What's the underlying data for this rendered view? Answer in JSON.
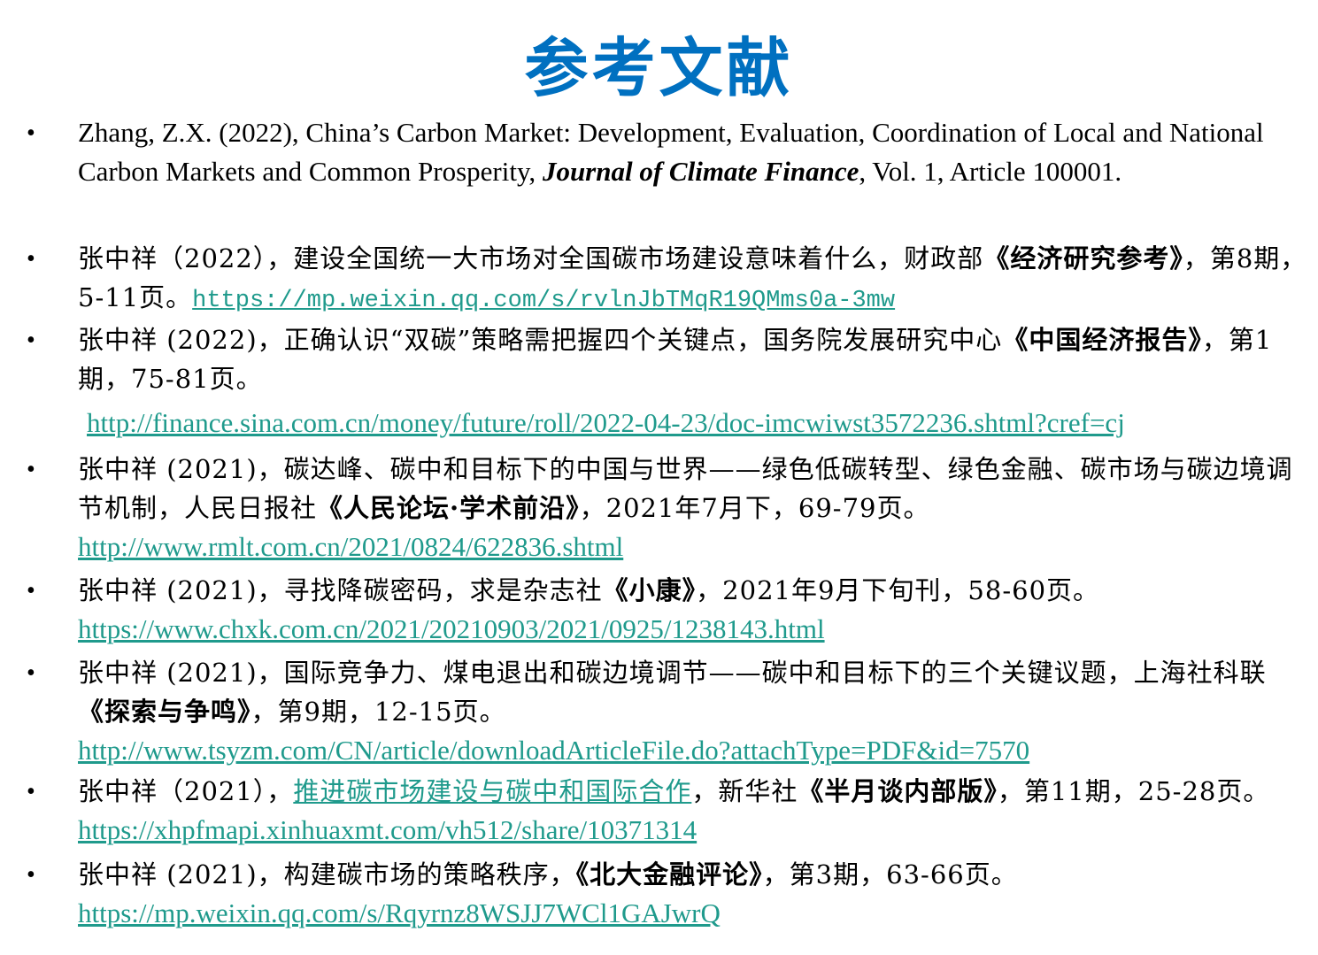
{
  "title": "参考文献",
  "colors": {
    "title": "#0070C0",
    "link": "#1F9A8C"
  },
  "references": [
    {
      "top": 0,
      "segments": [
        {
          "t": "Zhang, Z.X. (2022), China’s Carbon Market: Development, Evaluation, Coordination of Local and National Carbon Markets and Common Prosperity, ",
          "s": "plain"
        },
        {
          "t": "Journal of Climate Finance",
          "s": "bi"
        },
        {
          "t": ", Vol. 1, Article 100001.",
          "s": "plain"
        }
      ]
    },
    {
      "segments": [
        {
          "t": "张中祥（2022），建设全国统一大市场对全国碳市场建设意味着什么，财政部",
          "s": "zh"
        },
        {
          "t": "《经济研究参考》",
          "s": "zhbold"
        },
        {
          "t": "，第8期，5-11页。",
          "s": "zh"
        },
        {
          "t": "https://mp.weixin.qq.com/s/rvlnJbTMqR19QMms0a-3mw",
          "s": "linkmono"
        }
      ]
    },
    {
      "segments": [
        {
          "t": "张中祥 (2022)，正确认识“双碳”策略需把握四个关键点，国务院发展研究中心",
          "s": "zh"
        },
        {
          "t": "《中国经济报告》",
          "s": "zhbold"
        },
        {
          "t": "，第1期，75-81页。",
          "s": "zh"
        },
        {
          "t": "http://finance.sina.com.cn/money/future/roll/2022-04-23/doc-imcwiwst3572236.shtml?cref=cj",
          "s": "linkblock"
        }
      ]
    },
    {
      "segments": [
        {
          "t": "张中祥 (2021)，碳达峰、碳中和目标下的中国与世界——绿色低碳转型、绿色金融、碳市场与碳边境调节机制，人民日报社",
          "s": "zh"
        },
        {
          "t": "《人民论坛·学术前沿》",
          "s": "zhbold"
        },
        {
          "t": "，2021年7月下，69-79页。",
          "s": "zh"
        },
        {
          "t": "http://www.rmlt.com.cn/2021/0824/622836.shtml",
          "s": "linkblock0"
        }
      ]
    },
    {
      "segments": [
        {
          "t": "张中祥 (2021)，寻找降碳密码，求是杂志社",
          "s": "zh"
        },
        {
          "t": "《小康》",
          "s": "zhbold"
        },
        {
          "t": "，2021年9月下旬刊，58-60页。",
          "s": "zh"
        },
        {
          "t": "https://www.chxk.com.cn/2021/20210903/2021/0925/1238143.html",
          "s": "linkblock0"
        }
      ]
    },
    {
      "segments": [
        {
          "t": "张中祥 (2021)，国际竞争力、煤电退出和碳边境调节——碳中和目标下的三个关键议题，上海社科联",
          "s": "zh"
        },
        {
          "t": "《探索与争鸣》",
          "s": "zhbold"
        },
        {
          "t": "，第9期，12-15页。",
          "s": "zh"
        },
        {
          "t": "http://www.tsyzm.com/CN/article/downloadArticleFile.do?attachType=PDF&id=7570",
          "s": "linkblock0"
        }
      ]
    },
    {
      "segments": [
        {
          "t": "张中祥（2021），",
          "s": "zh"
        },
        {
          "t": "推进碳市场建设与碳中和国际合作",
          "s": "linkzh"
        },
        {
          "t": "，新华社",
          "s": "zh"
        },
        {
          "t": "《半月谈内部版》",
          "s": "zhbold"
        },
        {
          "t": "，第11期，25-28页。",
          "s": "zh"
        },
        {
          "t": "https://xhpfmapi.xinhuaxmt.com/vh512/share/10371314",
          "s": "link"
        }
      ]
    },
    {
      "segments": [
        {
          "t": "张中祥 (2021)，构建碳市场的策略秩序，",
          "s": "zh"
        },
        {
          "t": "《北大金融评论》",
          "s": "zhbold"
        },
        {
          "t": "，第3期，63-66页。",
          "s": "zh"
        },
        {
          "t": "https://mp.weixin.qq.com/s/Rqyrnz8WSJJ7WCl1GAJwrQ",
          "s": "linkblock0"
        }
      ]
    }
  ],
  "bullet": "•"
}
